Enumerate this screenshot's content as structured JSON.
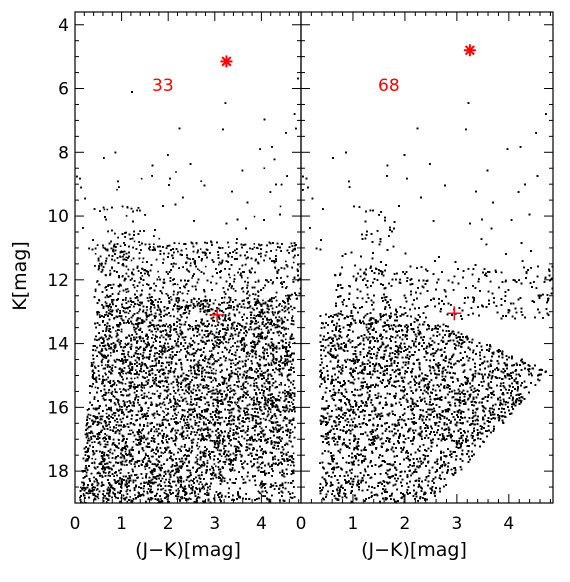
{
  "chart_data": [
    {
      "type": "scatter",
      "panel_label": "33",
      "xlabel": "(J−K)[mag]",
      "ylabel": "K[mag]",
      "xlim": [
        0,
        4.85
      ],
      "ylim": [
        19,
        3.6
      ],
      "y_inverted": true,
      "xticks": [
        "0",
        "1",
        "2",
        "3",
        "4"
      ],
      "yticks": [
        "4",
        "6",
        "8",
        "10",
        "12",
        "14",
        "16",
        "18"
      ],
      "point_color": "#000000",
      "markers": [
        {
          "type": "asterisk",
          "color": "#ff0000",
          "x": 3.25,
          "y": 5.15
        },
        {
          "type": "plus",
          "color": "#ff0000",
          "x": 3.05,
          "y": 13.1
        }
      ]
    },
    {
      "type": "scatter",
      "panel_label": "68",
      "xlabel": "(J−K)[mag]",
      "xlim": [
        0,
        4.85
      ],
      "ylim": [
        19,
        3.6
      ],
      "y_inverted": true,
      "xticks": [
        "0",
        "1",
        "2",
        "3",
        "4"
      ],
      "point_color": "#000000",
      "markers": [
        {
          "type": "asterisk",
          "color": "#ff0000",
          "x": 3.25,
          "y": 4.8
        },
        {
          "type": "plus",
          "color": "#ff0000",
          "x": 2.95,
          "y": 13.05
        }
      ]
    }
  ]
}
